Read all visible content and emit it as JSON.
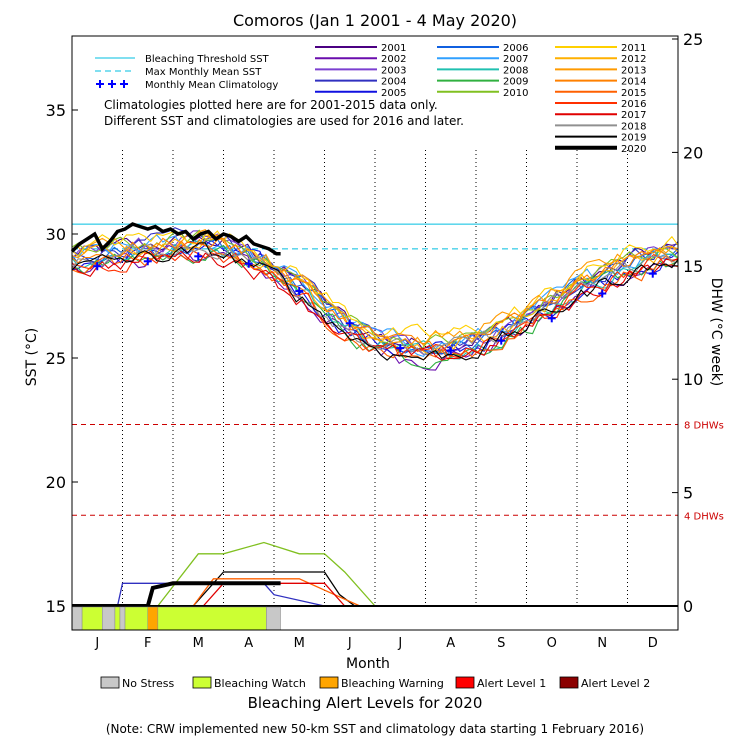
{
  "chart_data": {
    "type": "line",
    "title": "Comoros      (Jan 1 2001 - 4 May 2020)",
    "xlabel": "Month",
    "ylabel_left": "SST (°C)",
    "ylabel_right": "DHW (°C week)",
    "x_ticks": [
      "J",
      "F",
      "M",
      "A",
      "M",
      "J",
      "J",
      "A",
      "S",
      "O",
      "N",
      "D"
    ],
    "y_ticks_left": [
      "15",
      "20",
      "25",
      "30",
      "35"
    ],
    "y_ticks_right": [
      "0",
      "5",
      "10",
      "15",
      "20",
      "25"
    ],
    "ylim_left": [
      15,
      38
    ],
    "ylim_right": [
      0,
      25
    ],
    "grid": "vertical dotted lines at month boundaries",
    "reference_lines": [
      {
        "name": "Bleaching Threshold SST",
        "value": 30.4,
        "color": "#00bfe0",
        "style": "solid"
      },
      {
        "name": "Max Monthly Mean SST",
        "value": 29.4,
        "color": "#00bfe0",
        "style": "dashed"
      }
    ],
    "dhw_lines": [
      {
        "label": "8 DHWs",
        "value": 8,
        "color": "#cc0000"
      },
      {
        "label": "4 DHWs",
        "value": 4,
        "color": "#cc0000"
      }
    ],
    "climatology": {
      "name": "Monthly Mean Climatology",
      "x": [
        0.5,
        1.5,
        2.5,
        3.5,
        4.5,
        5.5,
        6.5,
        7.5,
        8.5,
        9.5,
        10.5,
        11.5
      ],
      "values": [
        28.7,
        28.9,
        29.1,
        28.8,
        27.7,
        26.4,
        25.4,
        25.3,
        25.7,
        26.6,
        27.6,
        28.4
      ]
    },
    "sst_envelope": {
      "x": [
        0,
        0.5,
        1,
        1.5,
        2,
        2.5,
        3,
        3.5,
        4,
        4.5,
        5,
        5.5,
        6,
        6.5,
        7,
        7.5,
        8,
        8.5,
        9,
        9.5,
        10,
        10.5,
        11,
        11.5,
        12
      ],
      "values": [
        29.0,
        29.1,
        29.3,
        29.4,
        29.5,
        29.6,
        29.5,
        29.2,
        28.6,
        27.9,
        27.1,
        26.3,
        25.8,
        25.5,
        25.4,
        25.5,
        25.7,
        26.1,
        26.6,
        27.2,
        27.8,
        28.3,
        28.8,
        29.1,
        29.2
      ]
    },
    "series": [
      {
        "name": "2001",
        "color": "#4b0082"
      },
      {
        "name": "2002",
        "color": "#6a0dad"
      },
      {
        "name": "2003",
        "color": "#7b3fd0"
      },
      {
        "name": "2004",
        "color": "#3030c0"
      },
      {
        "name": "2005",
        "color": "#1010e0"
      },
      {
        "name": "2006",
        "color": "#1060e0"
      },
      {
        "name": "2007",
        "color": "#30a0ff"
      },
      {
        "name": "2008",
        "color": "#20c0b0"
      },
      {
        "name": "2009",
        "color": "#30b040"
      },
      {
        "name": "2010",
        "color": "#80c020"
      },
      {
        "name": "2011",
        "color": "#ffd000"
      },
      {
        "name": "2012",
        "color": "#ffb000"
      },
      {
        "name": "2013",
        "color": "#ff9a00"
      },
      {
        "name": "2014",
        "color": "#ff8000"
      },
      {
        "name": "2015",
        "color": "#ff6000"
      },
      {
        "name": "2016",
        "color": "#ff3000"
      },
      {
        "name": "2017",
        "color": "#e00000"
      },
      {
        "name": "2018",
        "color": "#909090"
      },
      {
        "name": "2019",
        "color": "#000000"
      },
      {
        "name": "2020",
        "color": "#000000",
        "bold": true
      }
    ],
    "sst_2020": {
      "x": [
        0.0,
        0.15,
        0.3,
        0.45,
        0.6,
        0.75,
        0.9,
        1.05,
        1.2,
        1.35,
        1.5,
        1.65,
        1.8,
        1.95,
        2.1,
        2.25,
        2.4,
        2.55,
        2.7,
        2.85,
        3.0,
        3.15,
        3.3,
        3.45,
        3.6,
        3.75,
        3.9,
        4.05,
        4.13
      ],
      "values": [
        29.3,
        29.6,
        29.8,
        30.0,
        29.4,
        29.7,
        30.1,
        30.2,
        30.4,
        30.3,
        30.2,
        30.3,
        30.1,
        30.2,
        30.0,
        30.1,
        29.8,
        30.0,
        30.1,
        29.8,
        30.0,
        29.9,
        29.7,
        29.9,
        29.6,
        29.5,
        29.4,
        29.2,
        29.2
      ]
    },
    "dhw_2020": {
      "x": [
        0.0,
        1.0,
        1.5,
        1.6,
        2.0,
        2.5,
        3.0,
        3.5,
        4.0,
        4.13
      ],
      "values": [
        0,
        0,
        0,
        0.8,
        1.0,
        1.0,
        1.0,
        1.0,
        1.0,
        1.0
      ]
    },
    "dhw_other_years": [
      {
        "color": "#80c020",
        "x": [
          1.7,
          2.5,
          3.0,
          3.8,
          4.5,
          5.0,
          5.4,
          6.0
        ],
        "values": [
          0,
          2.3,
          2.3,
          2.8,
          2.3,
          2.3,
          1.5,
          0
        ]
      },
      {
        "color": "#000000",
        "x": [
          2.4,
          3.0,
          4.0,
          5.0,
          5.3,
          5.6,
          6.0
        ],
        "values": [
          0,
          1.5,
          1.5,
          1.5,
          0.5,
          0,
          0
        ]
      },
      {
        "color": "#3030c0",
        "x": [
          0.9,
          1.0,
          2.0,
          3.0,
          3.8,
          4.0,
          5.0
        ],
        "values": [
          0,
          1.0,
          1.0,
          1.0,
          1.0,
          0.5,
          0
        ]
      },
      {
        "color": "#ff6000",
        "x": [
          2.4,
          2.8,
          3.5,
          4.5,
          5.2,
          5.7
        ],
        "values": [
          0,
          1.2,
          1.2,
          1.2,
          0.5,
          0
        ]
      },
      {
        "color": "#e00000",
        "x": [
          2.6,
          3.0,
          4.0,
          5.0,
          5.4
        ],
        "values": [
          0,
          1.0,
          1.0,
          1.0,
          0
        ]
      }
    ],
    "legend_lines": [
      {
        "label": "Bleaching Threshold SST",
        "color": "#00bfe0",
        "style": "solid"
      },
      {
        "label": "Max Monthly Mean SST",
        "color": "#00bfe0",
        "style": "dashed"
      },
      {
        "label": "Monthly Mean Climatology",
        "color": "#0000ff",
        "style": "plus"
      }
    ],
    "notes": [
      "Climatologies plotted here are for 2001-2015 data only.",
      "Different SST and climatologies are used for 2016 and later."
    ],
    "alert_bar": {
      "segments": [
        {
          "start": 0.0,
          "end": 0.2,
          "level": "No Stress"
        },
        {
          "start": 0.2,
          "end": 0.6,
          "level": "Bleaching Watch"
        },
        {
          "start": 0.6,
          "end": 0.85,
          "level": "No Stress"
        },
        {
          "start": 0.85,
          "end": 0.95,
          "level": "Bleaching Watch"
        },
        {
          "start": 0.95,
          "end": 1.05,
          "level": "No Stress"
        },
        {
          "start": 1.05,
          "end": 1.5,
          "level": "Bleaching Watch"
        },
        {
          "start": 1.5,
          "end": 1.7,
          "level": "Bleaching Warning"
        },
        {
          "start": 1.7,
          "end": 3.85,
          "level": "Bleaching Watch"
        },
        {
          "start": 3.85,
          "end": 4.13,
          "level": "No Stress"
        }
      ]
    },
    "alert_legend": [
      {
        "label": "No Stress",
        "color": "#c8c8c8"
      },
      {
        "label": "Bleaching Watch",
        "color": "#ccff33"
      },
      {
        "label": "Bleaching Warning",
        "color": "#ffa500"
      },
      {
        "label": "Alert Level 1",
        "color": "#ff0000"
      },
      {
        "label": "Alert Level 2",
        "color": "#8b0000"
      }
    ],
    "alert_title": "Bleaching Alert Levels for 2020",
    "footnote": "(Note: CRW implemented new 50-km SST and climatology data starting 1 February 2016)"
  }
}
